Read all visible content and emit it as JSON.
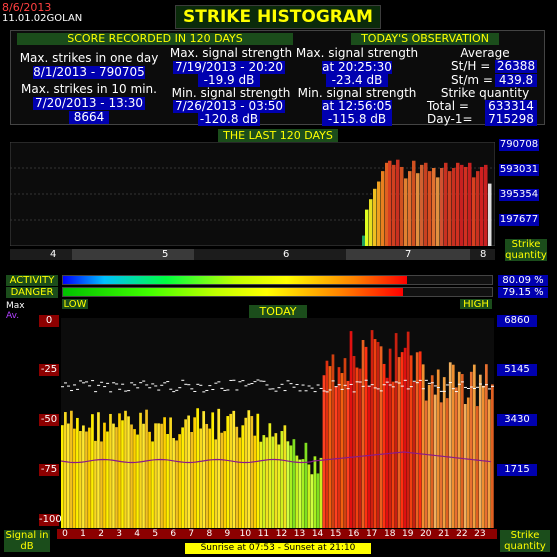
{
  "header": {
    "date": "8/6/2013",
    "station": "11.01.02GOLAN",
    "title": "STRIKE HISTOGRAM"
  },
  "score": {
    "heading": "SCORE RECORDED IN 120 DAYS",
    "max_one_day_label": "Max. strikes in one day",
    "max_one_day_value": "8/1/2013 - 790705",
    "max_10min_label": "Max. strikes in 10 min.",
    "max_10min_date": "7/20/2013 - 13:30",
    "max_10min_value": "8664",
    "max_signal_label": "Max. signal strength",
    "max_signal_date": "7/19/2013 - 20:20",
    "max_signal_value": "-19.9 dB",
    "min_signal_label": "Min. signal strength",
    "min_signal_date": "7/26/2013 - 03:50",
    "min_signal_value": "-120.8 dB"
  },
  "today_obs": {
    "heading": "TODAY'S OBSERVATION",
    "max_signal_label": "Max. signal strength",
    "max_signal_time": "at 20:25:30",
    "max_signal_value": "-23.4 dB",
    "min_signal_label": "Min. signal strength",
    "min_signal_time": "at 12:56:05",
    "min_signal_value": "-115.8 dB",
    "average_label": "Average",
    "sth_label": "St/H =",
    "sth_value": "26388",
    "stm_label": "St/m =",
    "stm_value": "439.8",
    "strike_qty_label": "Strike quantity",
    "total_label": "Total  =",
    "total_value": "633314",
    "day1_label": "Day-1=",
    "day1_value": "715298"
  },
  "last120": {
    "title": "THE LAST 120 DAYS",
    "yticks": [
      "790708",
      "593031",
      "395354",
      "197677"
    ],
    "ylabel": "Strike quantity",
    "months": [
      "4",
      "5",
      "6",
      "7",
      "8"
    ]
  },
  "gauges": {
    "activity_label": "ACTIVITY",
    "danger_label": "DANGER",
    "activity_pct": "80.09 %",
    "danger_pct": "79.15 %",
    "activity_value": 80.09,
    "danger_value": 79.15,
    "low_label": "LOW",
    "high_label": "HIGH"
  },
  "today": {
    "title": "TODAY",
    "legend_max": "Max",
    "legend_av": "Av.",
    "left_ticks": [
      "0",
      "-25",
      "-50",
      "-75",
      "-100"
    ],
    "right_ticks": [
      "6860",
      "5145",
      "3430",
      "1715"
    ],
    "left_axis_label": "Signal in dB",
    "right_axis_label": "Strike quantity",
    "hours": [
      "0",
      "1",
      "2",
      "3",
      "4",
      "5",
      "6",
      "7",
      "8",
      "9",
      "10",
      "11",
      "12",
      "13",
      "14",
      "15",
      "16",
      "17",
      "18",
      "19",
      "20",
      "21",
      "22",
      "23"
    ],
    "sun": "Sunrise at 07:53  -  Sunset at 21:10"
  },
  "colors": {
    "blue_label": "#0000b0",
    "green_header": "#1b4d1b",
    "axis_red": "#8c0000"
  }
}
